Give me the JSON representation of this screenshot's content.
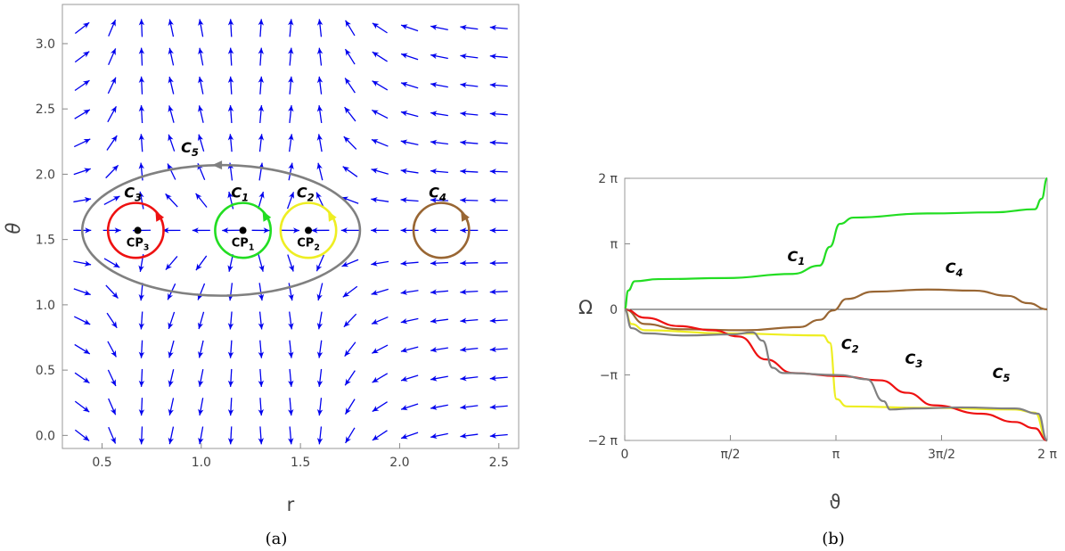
{
  "chart_data": [
    {
      "type": "vector_field",
      "panel_caption": "(a)",
      "xlabel": "r",
      "ylabel": "θ",
      "xlim": [
        0.3,
        2.6
      ],
      "ylim": [
        -0.1,
        3.3
      ],
      "xticks": [
        "0.5",
        "1.0",
        "1.5",
        "2.0",
        "2.5"
      ],
      "yticks": [
        "0.0",
        "0.5",
        "1.0",
        "1.5",
        "2.0",
        "2.5",
        "3.0"
      ],
      "arrow_color": "#0000ee",
      "grid_r": [
        0.4,
        0.55,
        0.7,
        0.85,
        1.0,
        1.15,
        1.3,
        1.45,
        1.6,
        1.75,
        1.9,
        2.05,
        2.2,
        2.35,
        2.5
      ],
      "grid_theta": [
        0.0,
        0.22,
        0.44,
        0.66,
        0.88,
        1.1,
        1.32,
        1.57,
        1.8,
        2.02,
        2.24,
        2.46,
        2.68,
        2.9,
        3.12
      ],
      "zero_points": [
        {
          "label": "CP",
          "sub": "3",
          "r": 0.68,
          "theta": 1.57
        },
        {
          "label": "CP",
          "sub": "1",
          "r": 1.21,
          "theta": 1.57
        },
        {
          "label": "CP",
          "sub": "2",
          "r": 1.54,
          "theta": 1.57
        }
      ],
      "contours": [
        {
          "label": "C",
          "sub": "1",
          "color": "#22dd22",
          "center_r": 1.21,
          "center_theta": 1.57,
          "radius_r": 0.14,
          "radius_theta": 0.21
        },
        {
          "label": "C",
          "sub": "2",
          "color": "#eeee22",
          "center_r": 1.54,
          "center_theta": 1.57,
          "radius_r": 0.14,
          "radius_theta": 0.21
        },
        {
          "label": "C",
          "sub": "3",
          "color": "#ee1111",
          "center_r": 0.67,
          "center_theta": 1.57,
          "radius_r": 0.14,
          "radius_theta": 0.21
        },
        {
          "label": "C",
          "sub": "4",
          "color": "#996633",
          "center_r": 2.21,
          "center_theta": 1.57,
          "radius_r": 0.14,
          "radius_theta": 0.21
        },
        {
          "label": "C",
          "sub": "5",
          "color": "#808080",
          "center_r": 1.1,
          "center_theta": 1.57,
          "radius_r": 0.7,
          "radius_theta": 0.5
        }
      ]
    },
    {
      "type": "line",
      "panel_caption": "(b)",
      "xlabel": "ϑ",
      "ylabel": "Ω",
      "xlim": [
        0,
        6.2832
      ],
      "ylim": [
        -6.2832,
        6.2832
      ],
      "xticks": [
        {
          "value": 0,
          "label": "0"
        },
        {
          "value": 1.5708,
          "label": "π/2"
        },
        {
          "value": 3.1416,
          "label": "π"
        },
        {
          "value": 4.7124,
          "label": "3π/2"
        },
        {
          "value": 6.2832,
          "label": "2 π"
        }
      ],
      "yticks": [
        {
          "value": 6.2832,
          "label": "2 π"
        },
        {
          "value": 3.1416,
          "label": "π"
        },
        {
          "value": 0,
          "label": "0"
        },
        {
          "value": -3.1416,
          "label": "−π"
        },
        {
          "value": -6.2832,
          "label": "−2 π"
        }
      ],
      "series": [
        {
          "name": "C1",
          "color": "#22dd22",
          "points": [
            [
              0,
              0
            ],
            [
              0.05,
              0.9
            ],
            [
              0.15,
              1.35
            ],
            [
              0.5,
              1.45
            ],
            [
              1.5,
              1.5
            ],
            [
              2.5,
              1.7
            ],
            [
              2.9,
              2.1
            ],
            [
              3.05,
              3.0
            ],
            [
              3.2,
              4.1
            ],
            [
              3.4,
              4.4
            ],
            [
              4.5,
              4.6
            ],
            [
              5.5,
              4.65
            ],
            [
              6.1,
              4.8
            ],
            [
              6.2,
              5.3
            ],
            [
              6.2832,
              6.2832
            ]
          ]
        },
        {
          "name": "C4",
          "color": "#996633",
          "points": [
            [
              0,
              0
            ],
            [
              0.3,
              -0.7
            ],
            [
              0.8,
              -0.95
            ],
            [
              1.8,
              -1.0
            ],
            [
              2.6,
              -0.85
            ],
            [
              2.9,
              -0.5
            ],
            [
              3.1,
              -0.05
            ],
            [
              3.3,
              0.5
            ],
            [
              3.7,
              0.85
            ],
            [
              4.5,
              0.95
            ],
            [
              5.2,
              0.9
            ],
            [
              5.7,
              0.65
            ],
            [
              6.0,
              0.3
            ],
            [
              6.2832,
              0
            ]
          ]
        },
        {
          "name": "C2",
          "color": "#eeee22",
          "points": [
            [
              0,
              0
            ],
            [
              0.1,
              -0.7
            ],
            [
              0.3,
              -1.0
            ],
            [
              1.5,
              -1.15
            ],
            [
              2.95,
              -1.25
            ],
            [
              3.05,
              -1.6
            ],
            [
              3.15,
              -4.3
            ],
            [
              3.3,
              -4.65
            ],
            [
              4.5,
              -4.72
            ],
            [
              5.8,
              -4.8
            ],
            [
              6.1,
              -4.95
            ],
            [
              6.2832,
              -6.2832
            ]
          ]
        },
        {
          "name": "C3",
          "color": "#ee1111",
          "points": [
            [
              0,
              0
            ],
            [
              0.3,
              -0.4
            ],
            [
              0.8,
              -0.8
            ],
            [
              1.3,
              -1.0
            ],
            [
              1.7,
              -1.3
            ],
            [
              2.1,
              -2.4
            ],
            [
              2.5,
              -3.05
            ],
            [
              3.2,
              -3.2
            ],
            [
              3.8,
              -3.4
            ],
            [
              4.2,
              -4.0
            ],
            [
              4.6,
              -4.6
            ],
            [
              5.3,
              -5.0
            ],
            [
              5.8,
              -5.4
            ],
            [
              6.1,
              -5.7
            ],
            [
              6.2832,
              -6.2832
            ]
          ]
        },
        {
          "name": "C5",
          "color": "#808080",
          "points": [
            [
              0,
              0
            ],
            [
              0.1,
              -0.9
            ],
            [
              0.3,
              -1.15
            ],
            [
              0.9,
              -1.25
            ],
            [
              1.6,
              -1.2
            ],
            [
              1.9,
              -1.1
            ],
            [
              2.05,
              -1.5
            ],
            [
              2.2,
              -2.8
            ],
            [
              2.35,
              -3.05
            ],
            [
              3.2,
              -3.15
            ],
            [
              3.6,
              -3.35
            ],
            [
              3.85,
              -4.4
            ],
            [
              3.95,
              -4.8
            ],
            [
              4.3,
              -4.75
            ],
            [
              5.0,
              -4.7
            ],
            [
              5.8,
              -4.75
            ],
            [
              6.15,
              -5.0
            ],
            [
              6.2832,
              -6.2832
            ]
          ]
        }
      ],
      "annotations": [
        {
          "label": "C",
          "sub": "1",
          "x": 2.55,
          "y": 2.3
        },
        {
          "label": "C",
          "sub": "4",
          "x": 4.9,
          "y": 1.75
        },
        {
          "label": "C",
          "sub": "2",
          "x": 3.35,
          "y": -1.9
        },
        {
          "label": "C",
          "sub": "3",
          "x": 4.3,
          "y": -2.6
        },
        {
          "label": "C",
          "sub": "5",
          "x": 5.6,
          "y": -3.3
        }
      ]
    }
  ]
}
